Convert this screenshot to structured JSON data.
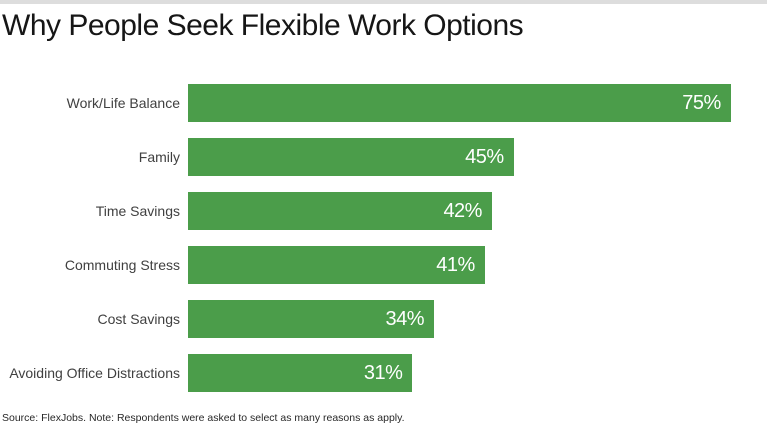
{
  "page": {
    "title": "Why People Seek Flexible Work Options",
    "source_note": "Source: FlexJobs. Note: Respondents were asked to select as many reasons as apply."
  },
  "colors": {
    "bar_green": "#4b9d4a",
    "value_label_white": "#ffffff",
    "title_black": "#161616",
    "category_label_gray": "#404040",
    "top_strip_gray": "#dddddd",
    "background": "#ffffff"
  },
  "chart_data": {
    "type": "bar",
    "orientation": "horizontal",
    "title": "Why People Seek Flexible Work Options",
    "categories": [
      "Work/Life Balance",
      "Family",
      "Time Savings",
      "Commuting Stress",
      "Cost Savings",
      "Avoiding Office Distractions"
    ],
    "values": [
      75,
      45,
      42,
      41,
      34,
      31
    ],
    "value_labels": [
      "75%",
      "45%",
      "42%",
      "41%",
      "34%",
      "31%"
    ],
    "xlabel": "",
    "ylabel": "",
    "xlim": [
      0,
      80
    ],
    "grid": false,
    "legend": false,
    "bar_color": "#4b9d4a",
    "value_label_position": "inside-end",
    "note": "Source: FlexJobs. Note: Respondents were asked to select as many reasons as apply."
  }
}
